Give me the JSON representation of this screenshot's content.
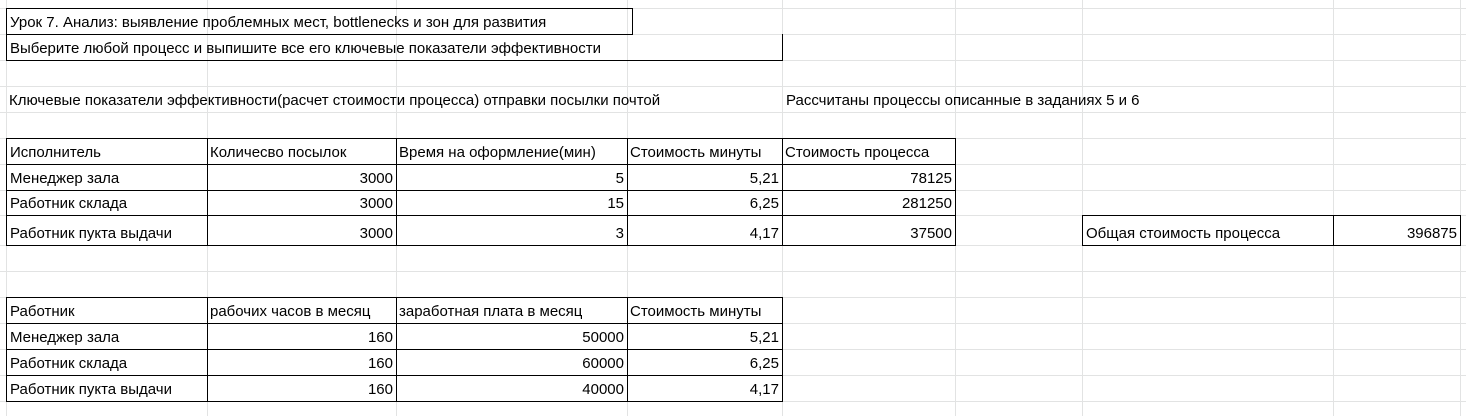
{
  "title_cell": "Урок 7. Анализ: выявление проблемных мест, bottlenecks и зон для развития",
  "task_cell": "Выберите любой процесс и выпишите все его ключевые показатели эффективности",
  "section_heading": "Ключевые показатели эффективности(расчет стоимости процесса) отправки посылки почтой",
  "note": "Рассчитаны процессы описанные в заданиях 5 и 6",
  "table1": {
    "headers": [
      "Исполнитель",
      "Количесво посылок",
      "Время на оформление(мин)",
      "Стоимость минуты",
      "Стоимость процесса"
    ],
    "rows": [
      [
        "Менеджер зала",
        "3000",
        "5",
        "5,21",
        "78125"
      ],
      [
        "Работник склада",
        "3000",
        "15",
        "6,25",
        "281250"
      ],
      [
        "Работник пукта выдачи",
        "3000",
        "3",
        "4,17",
        "37500"
      ]
    ]
  },
  "total": {
    "label": "Общая стоимость процесса",
    "value": "396875"
  },
  "table2": {
    "headers": [
      "Работник",
      "рабочих часов в месяц",
      "заработная плата в месяц",
      "Стоимость минуты"
    ],
    "rows": [
      [
        "Менеджер зала",
        "160",
        "50000",
        "5,21"
      ],
      [
        "Работник склада",
        "160",
        "60000",
        "6,25"
      ],
      [
        "Работник пукта выдачи",
        "160",
        "40000",
        "4,17"
      ]
    ]
  }
}
